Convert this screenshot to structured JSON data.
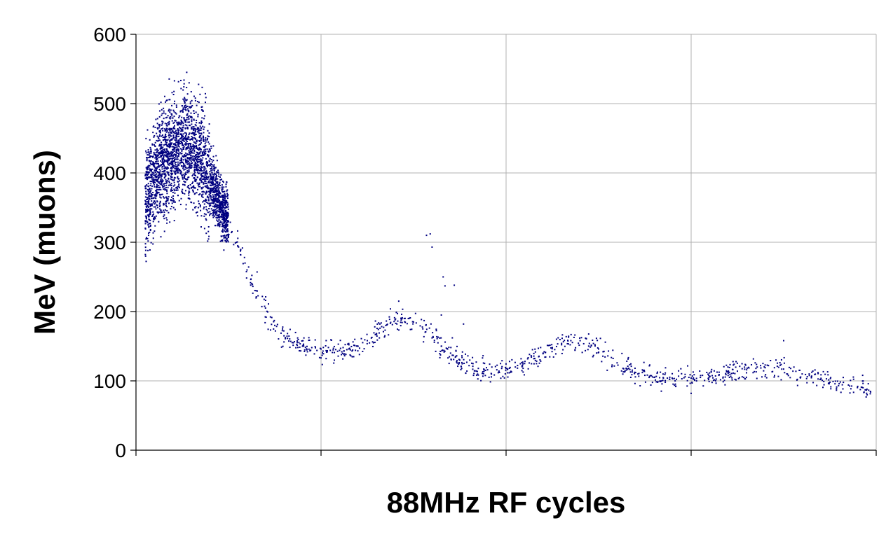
{
  "chart_data": {
    "type": "scatter",
    "title": "",
    "xlabel": "88MHz RF cycles",
    "ylabel": "MeV (muons)",
    "ylim": [
      0,
      600
    ],
    "yticks": [
      0,
      100,
      200,
      300,
      400,
      500,
      600
    ],
    "xlim": [
      0,
      4
    ],
    "xticks": [
      0,
      1,
      2,
      3,
      4
    ],
    "x_tick_labels_shown": false,
    "grid": true,
    "legend": "none",
    "marker_color": "#000080",
    "series": [
      {
        "values_note": "approximate centerline samples read from the scatter (x in RF cycles, y in MeV)",
        "points": [
          [
            0.05,
            360
          ],
          [
            0.1,
            390
          ],
          [
            0.15,
            415
          ],
          [
            0.2,
            430
          ],
          [
            0.25,
            440
          ],
          [
            0.3,
            435
          ],
          [
            0.35,
            420
          ],
          [
            0.4,
            390
          ],
          [
            0.45,
            360
          ],
          [
            0.5,
            330
          ],
          [
            0.55,
            295
          ],
          [
            0.6,
            260
          ],
          [
            0.65,
            230
          ],
          [
            0.7,
            205
          ],
          [
            0.75,
            180
          ],
          [
            0.8,
            165
          ],
          [
            0.85,
            155
          ],
          [
            0.9,
            150
          ],
          [
            0.95,
            148
          ],
          [
            1.0,
            146
          ],
          [
            1.05,
            144
          ],
          [
            1.1,
            144
          ],
          [
            1.15,
            146
          ],
          [
            1.2,
            150
          ],
          [
            1.25,
            158
          ],
          [
            1.3,
            168
          ],
          [
            1.35,
            180
          ],
          [
            1.4,
            188
          ],
          [
            1.45,
            190
          ],
          [
            1.5,
            185
          ],
          [
            1.55,
            175
          ],
          [
            1.6,
            162
          ],
          [
            1.65,
            150
          ],
          [
            1.7,
            140
          ],
          [
            1.75,
            130
          ],
          [
            1.8,
            122
          ],
          [
            1.85,
            118
          ],
          [
            1.9,
            116
          ],
          [
            1.95,
            116
          ],
          [
            2.0,
            118
          ],
          [
            2.05,
            120
          ],
          [
            2.1,
            125
          ],
          [
            2.15,
            132
          ],
          [
            2.2,
            140
          ],
          [
            2.25,
            148
          ],
          [
            2.3,
            154
          ],
          [
            2.35,
            158
          ],
          [
            2.4,
            158
          ],
          [
            2.45,
            154
          ],
          [
            2.5,
            146
          ],
          [
            2.55,
            136
          ],
          [
            2.6,
            126
          ],
          [
            2.65,
            118
          ],
          [
            2.7,
            112
          ],
          [
            2.75,
            108
          ],
          [
            2.8,
            105
          ],
          [
            2.85,
            104
          ],
          [
            2.9,
            103
          ],
          [
            2.95,
            103
          ],
          [
            3.0,
            104
          ],
          [
            3.05,
            105
          ],
          [
            3.1,
            106
          ],
          [
            3.15,
            108
          ],
          [
            3.2,
            111
          ],
          [
            3.25,
            114
          ],
          [
            3.3,
            116
          ],
          [
            3.35,
            118
          ],
          [
            3.4,
            119
          ],
          [
            3.45,
            119
          ],
          [
            3.5,
            117
          ],
          [
            3.55,
            114
          ],
          [
            3.6,
            110
          ],
          [
            3.65,
            106
          ],
          [
            3.7,
            102
          ],
          [
            3.75,
            98
          ],
          [
            3.8,
            96
          ],
          [
            3.85,
            94
          ],
          [
            3.9,
            92
          ],
          [
            3.95,
            88
          ],
          [
            3.97,
            84
          ]
        ],
        "outliers": [
          [
            1.57,
            310
          ],
          [
            1.59,
            312
          ],
          [
            1.6,
            293
          ],
          [
            1.66,
            250
          ],
          [
            1.67,
            237
          ],
          [
            1.72,
            238
          ],
          [
            1.65,
            195
          ],
          [
            1.77,
            182
          ],
          [
            1.42,
            215
          ],
          [
            3.5,
            158
          ],
          [
            3.0,
            82
          ],
          [
            1.97,
            125
          ]
        ]
      }
    ]
  }
}
